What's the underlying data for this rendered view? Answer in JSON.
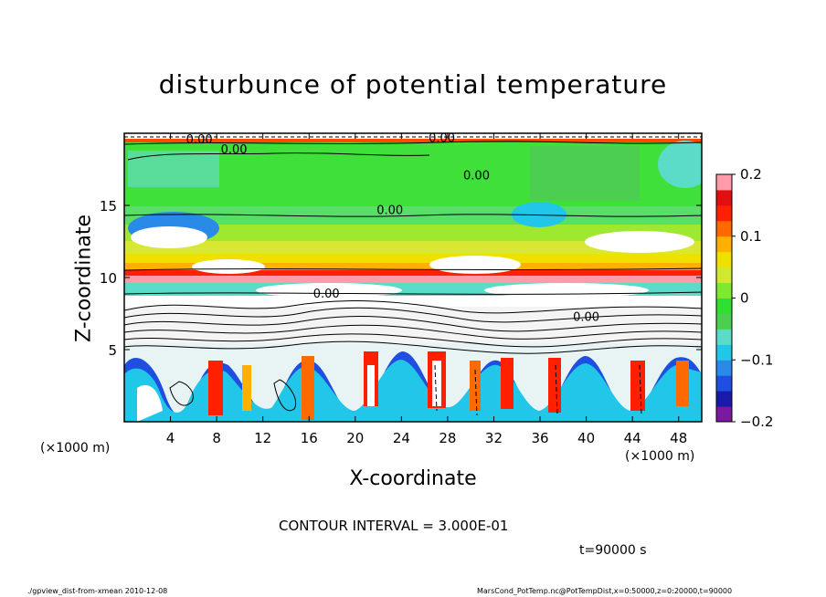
{
  "chart_data": {
    "type": "heatmap",
    "title": "disturbunce of potential temperature",
    "xlabel": "X-coordinate",
    "ylabel": "Z-coordinate",
    "x_unit_left": "(×1000 m)",
    "x_unit_right": "(×1000 m)",
    "x_ticks": [
      "4",
      "8",
      "12",
      "16",
      "20",
      "24",
      "28",
      "32",
      "36",
      "40",
      "44",
      "48"
    ],
    "x_tick_values": [
      4,
      8,
      12,
      16,
      20,
      24,
      28,
      32,
      36,
      40,
      44,
      48
    ],
    "y_ticks": [
      "5",
      "10",
      "15"
    ],
    "y_tick_values": [
      5,
      10,
      15
    ],
    "xlim": [
      0,
      50
    ],
    "ylim": [
      0,
      20
    ],
    "colorbar": {
      "labels": [
        "0.2",
        "0.1",
        "0",
        "−0.1",
        "−0.2"
      ],
      "values": [
        0.2,
        0.1,
        0,
        -0.1,
        -0.2
      ],
      "range": [
        -0.2,
        0.2
      ],
      "colors": [
        "#7a1aa0",
        "#1a1aa8",
        "#1f4fe0",
        "#2a8ae8",
        "#22c6e8",
        "#5adcc8",
        "#4ccf50",
        "#30e030",
        "#7fe830",
        "#cfe830",
        "#f0e000",
        "#ffb000",
        "#ff6a00",
        "#ff2000",
        "#e01010",
        "#ff9aa8"
      ]
    },
    "contour_labels": [
      "0.00",
      "0.00",
      "0.00",
      "0.00",
      "0.00",
      "0.00",
      "0.00"
    ],
    "contour_interval_text": "CONTOUR INTERVAL = 3.000E-01",
    "time_text": "t=90000 s"
  },
  "footer": {
    "left": "./gpview_dist-from-xmean   2010-12-08",
    "right": "MarsCond_PotTemp.nc@PotTempDist,x=0:50000,z=0:20000,t=90000"
  }
}
